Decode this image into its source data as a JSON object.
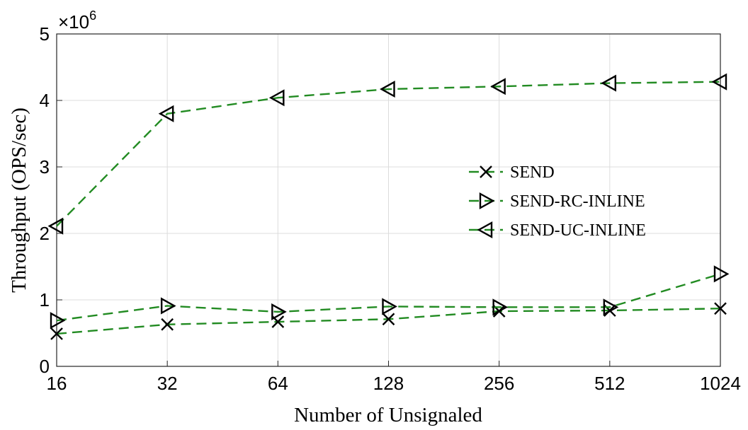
{
  "chart_data": {
    "type": "line",
    "xlabel": "Number of Unsignaled",
    "ylabel": "Throughput (OPS/sec)",
    "axis_multiplier": {
      "base": "×10",
      "exponent": "6"
    },
    "categories": [
      "16",
      "32",
      "64",
      "128",
      "256",
      "512",
      "1024"
    ],
    "series": [
      {
        "name": "SEND",
        "color": "#228b22",
        "marker": "x",
        "values": [
          0.49,
          0.63,
          0.67,
          0.71,
          0.83,
          0.84,
          0.87
        ]
      },
      {
        "name": "SEND-RC-INLINE",
        "color": "#228b22",
        "marker": "triangle-right",
        "values": [
          0.69,
          0.91,
          0.82,
          0.9,
          0.89,
          0.89,
          1.39
        ]
      },
      {
        "name": "SEND-UC-INLINE",
        "color": "#228b22",
        "marker": "triangle-left",
        "values": [
          2.11,
          3.8,
          4.04,
          4.17,
          4.21,
          4.26,
          4.28
        ]
      }
    ],
    "ylim": [
      0,
      5
    ],
    "yticks": [
      0,
      1,
      2,
      3,
      4,
      5
    ],
    "grid": true,
    "legend": "right"
  }
}
